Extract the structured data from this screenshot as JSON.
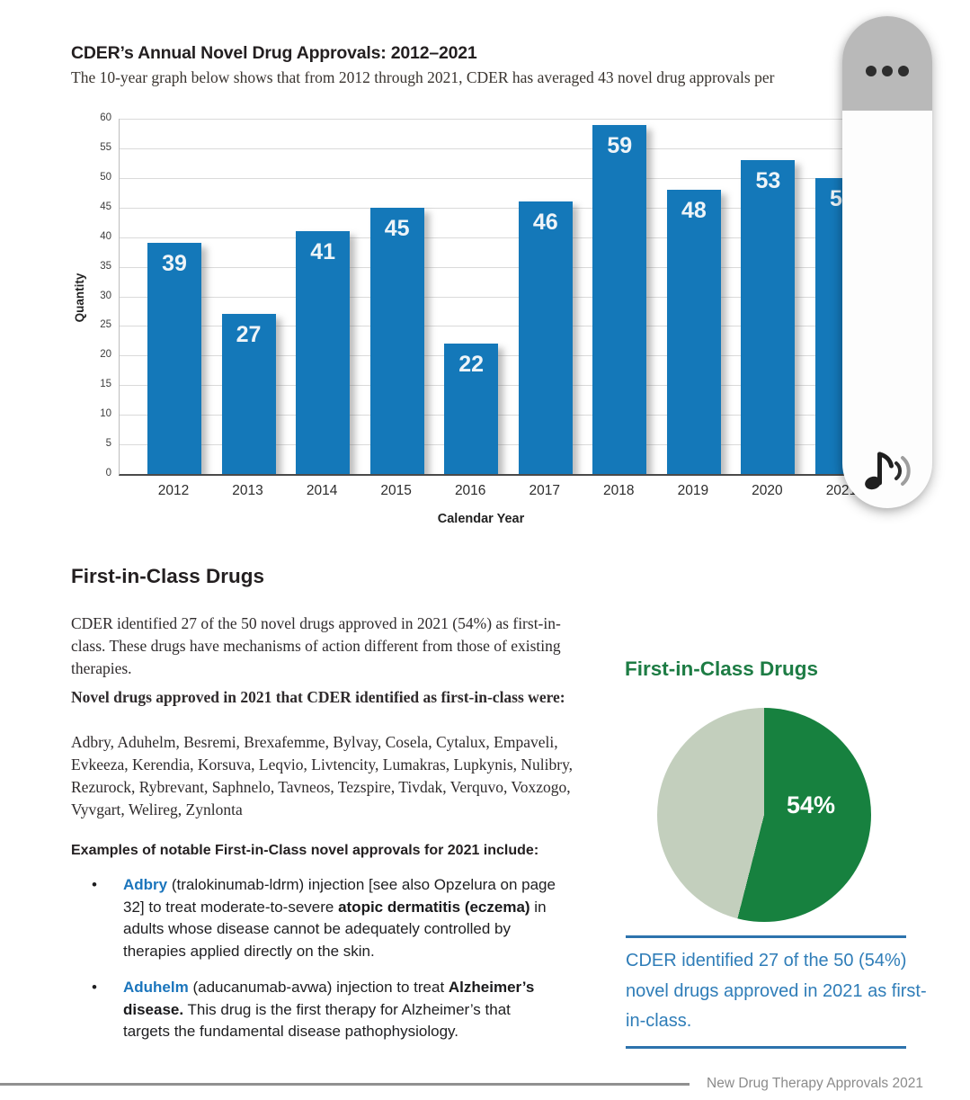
{
  "report": {
    "approvals_section": {
      "title": "CDER’s Annual Novel Drug Approvals: 2012–2021",
      "subtitle_visible": "The 10-year graph below shows that from 2012 through 2021, CDER has averaged 43 novel drug approvals per"
    },
    "first_in_class_section": {
      "heading": "First-in-Class Drugs",
      "intro": "CDER identified 27 of the 50 novel drugs approved in 2021 (54%) as first-in-class. These drugs have mechanisms of action different from those of existing therapies.",
      "list_lead": "Novel drugs approved in 2021 that CDER identified as first-in-class were:",
      "drug_list": "Adbry, Aduhelm, Besremi, Brexafemme, Bylvay, Cosela, Cytalux, Empaveli, Evkeeza, Kerendia, Korsuva, Leqvio, Livtencity, Lumakras, Lupkynis, Nulibry, Rezurock, Rybrevant, Saphnelo, Tavneos, Tezspire, Tivdak, Verquvo, Voxzogo, Vyvgart, Welireg, Zynlonta",
      "examples_lead": "Examples of notable First-in-Class novel approvals for 2021 include:",
      "bullets": [
        {
          "drug": "Adbry",
          "text_after_drug": " (tralokinumab-ldrm) injection [see also Opzelura on page 32] to treat moderate-to-severe ",
          "bold_phrase": "atopic dermatitis (eczema)",
          "text_end": " in adults whose disease cannot be adequately controlled by therapies applied directly on the skin."
        },
        {
          "drug": "Aduhelm",
          "text_after_drug": " (aducanumab-avwa) injection to treat ",
          "bold_phrase": "Alzheimer’s disease.",
          "text_end": " This drug is the first therapy for Alzheimer’s that targets the fundamental disease pathophysiology."
        }
      ]
    },
    "pie_sidebar": {
      "heading": "First-in-Class Drugs",
      "caption": "CDER identified 27 of the 50 (54%) novel drugs approved in 2021 as first-in-class."
    },
    "footer_text": "New Drug Therapy Approvals 2021"
  },
  "overlay_widget": {
    "menu_icon": "three-dots-menu",
    "bottom_icon": "music-note-with-sound-waves"
  },
  "chart_data": [
    {
      "type": "bar",
      "title": "CDER’s Annual Novel Drug Approvals: 2012–2021",
      "categories": [
        "2012",
        "2013",
        "2014",
        "2015",
        "2016",
        "2017",
        "2018",
        "2019",
        "2020",
        "2021"
      ],
      "values": [
        39,
        27,
        41,
        45,
        22,
        46,
        59,
        48,
        53,
        50
      ],
      "xlabel": "Calendar Year",
      "ylabel": "Quantity",
      "ylim": [
        0,
        60
      ],
      "ytick_step": 5,
      "grid": true,
      "bar_color": "#1478b9",
      "value_labels": true,
      "occlusion_hint": "rightmost 2021 bar partially hidden behind overlay widget"
    },
    {
      "type": "pie",
      "title": "First-in-Class Drugs",
      "slices": [
        {
          "label": "first-in-class",
          "value_pct": 54,
          "color": "#17813f",
          "text_label": "54%"
        },
        {
          "label": "other novel approvals",
          "value_pct": 46,
          "color": "#c3cfbd",
          "text_label": ""
        }
      ],
      "start_angle_deg": 0,
      "direction": "clockwise",
      "label_color": "#ffffff"
    }
  ],
  "colors": {
    "bar_blue": "#1478b9",
    "pie_dark_green": "#17813f",
    "pie_light_green": "#c3cfbd",
    "heading_green": "#1d7c44",
    "caption_blue": "#2f7db8",
    "rule_blue": "#2d73ad",
    "drug_link_blue": "#1b75bc",
    "footer_gray": "#8b8b8b",
    "widget_cap_gray": "#b9b9b9"
  }
}
